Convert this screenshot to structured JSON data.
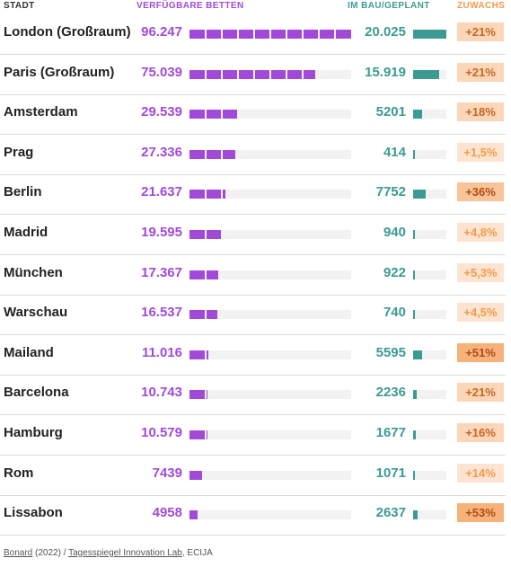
{
  "headers": {
    "city": "STADT",
    "beds": "VERFÜGBARE BETTEN",
    "under_construction": "IM BAU/GEPLANT",
    "growth": "ZUWACHS"
  },
  "colors": {
    "beds": "#a24ad8",
    "under_construction": "#3c9a93",
    "growth_text": "#f39a4a"
  },
  "chart_data": {
    "type": "table",
    "columns": [
      "Stadt",
      "Verfügbare Betten",
      "Im Bau/geplant",
      "Zuwachs"
    ],
    "rows": [
      {
        "city": "London (Großraum)",
        "beds": 96247,
        "beds_label": "96.247",
        "build": 20025,
        "build_label": "20.025",
        "growth": 21,
        "growth_label": "+21%"
      },
      {
        "city": "Paris (Großraum)",
        "beds": 75039,
        "beds_label": "75.039",
        "build": 15919,
        "build_label": "15.919",
        "growth": 21,
        "growth_label": "+21%"
      },
      {
        "city": "Amsterdam",
        "beds": 29539,
        "beds_label": "29.539",
        "build": 5201,
        "build_label": "5201",
        "growth": 18,
        "growth_label": "+18%"
      },
      {
        "city": "Prag",
        "beds": 27336,
        "beds_label": "27.336",
        "build": 414,
        "build_label": "414",
        "growth": 1.5,
        "growth_label": "+1,5%"
      },
      {
        "city": "Berlin",
        "beds": 21637,
        "beds_label": "21.637",
        "build": 7752,
        "build_label": "7752",
        "growth": 36,
        "growth_label": "+36%"
      },
      {
        "city": "Madrid",
        "beds": 19595,
        "beds_label": "19.595",
        "build": 940,
        "build_label": "940",
        "growth": 4.8,
        "growth_label": "+4,8%"
      },
      {
        "city": "München",
        "beds": 17367,
        "beds_label": "17.367",
        "build": 922,
        "build_label": "922",
        "growth": 5.3,
        "growth_label": "+5,3%"
      },
      {
        "city": "Warschau",
        "beds": 16537,
        "beds_label": "16.537",
        "build": 740,
        "build_label": "740",
        "growth": 4.5,
        "growth_label": "+4,5%"
      },
      {
        "city": "Mailand",
        "beds": 11016,
        "beds_label": "11.016",
        "build": 5595,
        "build_label": "5595",
        "growth": 51,
        "growth_label": "+51%"
      },
      {
        "city": "Barcelona",
        "beds": 10743,
        "beds_label": "10.743",
        "build": 2236,
        "build_label": "2236",
        "growth": 21,
        "growth_label": "+21%"
      },
      {
        "city": "Hamburg",
        "beds": 10579,
        "beds_label": "10.579",
        "build": 1677,
        "build_label": "1677",
        "growth": 16,
        "growth_label": "+16%"
      },
      {
        "city": "Rom",
        "beds": 7439,
        "beds_label": "7439",
        "build": 1071,
        "build_label": "1071",
        "growth": 14,
        "growth_label": "+14%"
      },
      {
        "city": "Lissabon",
        "beds": 4958,
        "beds_label": "4958",
        "build": 2637,
        "build_label": "2637",
        "growth": 53,
        "growth_label": "+53%"
      }
    ],
    "beds_max": 96247,
    "build_max": 20025
  },
  "source": {
    "part1": "Bonard",
    "part2": " (2022) / ",
    "part3": "Tagesspiegel Innovation Lab",
    "part4": ", ECIJA"
  }
}
